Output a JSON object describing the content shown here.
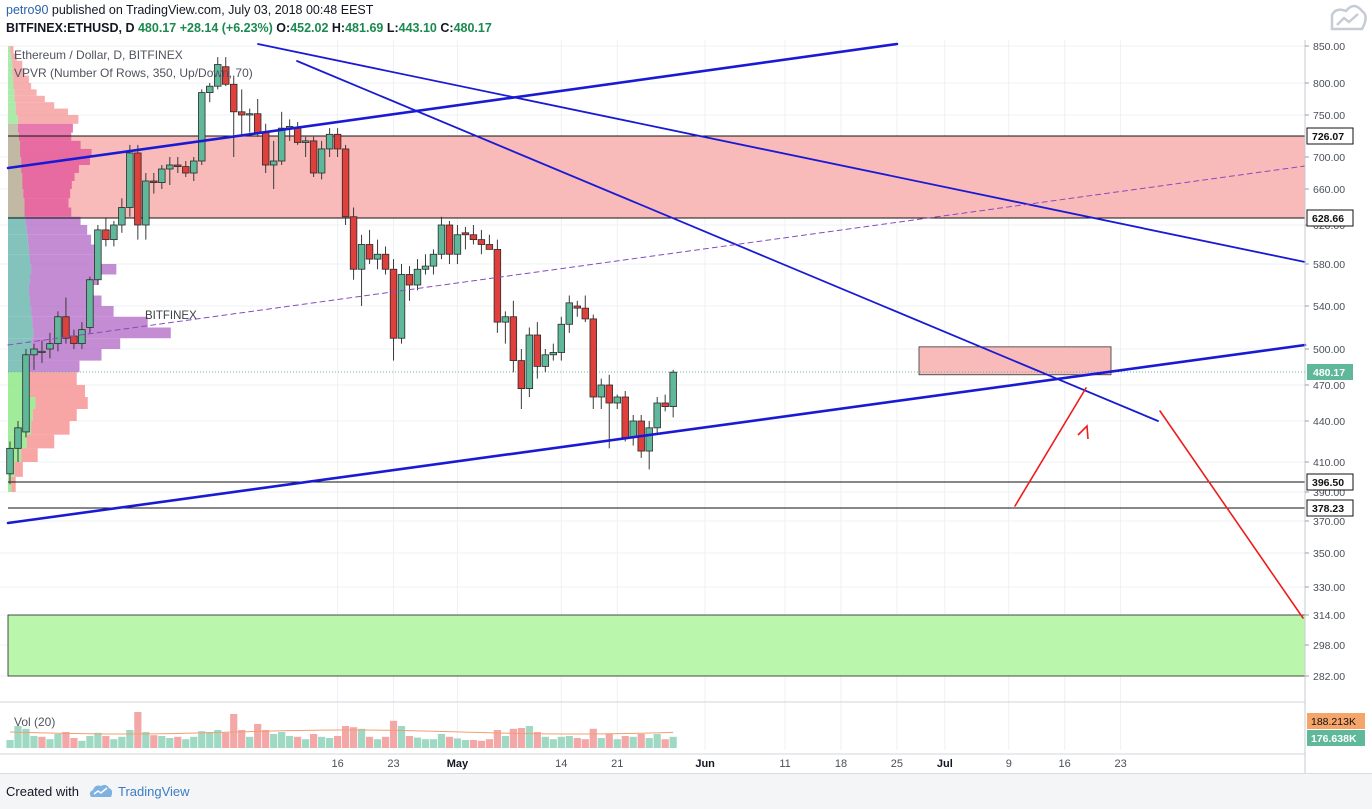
{
  "header": {
    "user": "petro90",
    "published_text": " published on TradingView.com, July 03, 2018 00:48 EEST",
    "symbol": "BITFINEX:ETHUSD, D",
    "last": "480.17",
    "change": "+28.14 (+6.23%)",
    "o_label": "O:",
    "o_value": "452.02",
    "h_label": "H:",
    "h_value": "481.69",
    "l_label": "L:",
    "l_value": "443.10",
    "c_label": "C:",
    "c_value": "480.17"
  },
  "legend": {
    "title": "Ethereum / Dollar, D, BITFINEX",
    "indicator": "VPVR (Number Of Rows, 350, Up/Down, 70)",
    "watermark": "BITFINEX",
    "volume": "Vol (20)"
  },
  "footer": {
    "created_with": "Created with",
    "brand": "TradingView"
  },
  "colors": {
    "up": "#5fb89a",
    "down": "#e0403c",
    "trendline": "#1a1ad4",
    "zone_red": "#f9b6b6",
    "zone_green": "#b6f5a8",
    "arrow": "#ee1c1c",
    "price_tag": "#5fb89a"
  },
  "chart_data": {
    "type": "candlestick",
    "y_ticks": [
      850,
      800,
      750,
      700,
      660,
      620,
      580,
      540,
      500,
      470,
      440,
      410,
      390,
      370,
      350,
      330,
      314,
      298,
      282
    ],
    "y_tick_labels": [
      "850.00",
      "800.00",
      "750.00",
      "700.00",
      "660.00",
      "620.00",
      "580.00",
      "540.00",
      "500.00",
      "470.00",
      "440.00",
      "410.00",
      "390.00",
      "370.00",
      "350.00",
      "330.00",
      "314.00",
      "298.00",
      "282.00"
    ],
    "x_labels": [
      {
        "day": 41,
        "label": "16"
      },
      {
        "day": 48,
        "label": "23"
      },
      {
        "day": 56,
        "label": "May"
      },
      {
        "day": 69,
        "label": "14"
      },
      {
        "day": 76,
        "label": "21"
      },
      {
        "day": 87,
        "label": "Jun"
      },
      {
        "day": 97,
        "label": "11"
      },
      {
        "day": 104,
        "label": "18"
      },
      {
        "day": 111,
        "label": "25"
      },
      {
        "day": 117,
        "label": "Jul"
      },
      {
        "day": 125,
        "label": "9"
      },
      {
        "day": 132,
        "label": "16"
      },
      {
        "day": 139,
        "label": "23"
      }
    ],
    "price_levels": [
      {
        "value": 726.07,
        "label": "726.07"
      },
      {
        "value": 628.66,
        "label": "628.66"
      },
      {
        "value": 396.5,
        "label": "396.50"
      },
      {
        "value": 378.23,
        "label": "378.23"
      }
    ],
    "last_price": {
      "value": 480.17,
      "label": "480.17"
    },
    "volume_labels": [
      "188.213K",
      "176.638K"
    ],
    "candles": [
      {
        "o": 402,
        "h": 425,
        "l": 395,
        "c": 420
      },
      {
        "o": 420,
        "h": 440,
        "l": 410,
        "c": 435
      },
      {
        "o": 432,
        "h": 500,
        "l": 428,
        "c": 495
      },
      {
        "o": 495,
        "h": 505,
        "l": 482,
        "c": 500
      },
      {
        "o": 497,
        "h": 508,
        "l": 488,
        "c": 498
      },
      {
        "o": 500,
        "h": 515,
        "l": 492,
        "c": 505
      },
      {
        "o": 505,
        "h": 535,
        "l": 498,
        "c": 530
      },
      {
        "o": 530,
        "h": 548,
        "l": 505,
        "c": 510
      },
      {
        "o": 512,
        "h": 518,
        "l": 500,
        "c": 505
      },
      {
        "o": 505,
        "h": 525,
        "l": 500,
        "c": 518
      },
      {
        "o": 520,
        "h": 568,
        "l": 515,
        "c": 565
      },
      {
        "o": 565,
        "h": 620,
        "l": 560,
        "c": 615
      },
      {
        "o": 615,
        "h": 628,
        "l": 598,
        "c": 605
      },
      {
        "o": 605,
        "h": 625,
        "l": 598,
        "c": 620
      },
      {
        "o": 620,
        "h": 650,
        "l": 612,
        "c": 640
      },
      {
        "o": 640,
        "h": 715,
        "l": 630,
        "c": 705
      },
      {
        "o": 705,
        "h": 715,
        "l": 605,
        "c": 620
      },
      {
        "o": 620,
        "h": 680,
        "l": 605,
        "c": 670
      },
      {
        "o": 670,
        "h": 680,
        "l": 655,
        "c": 668
      },
      {
        "o": 668,
        "h": 690,
        "l": 660,
        "c": 685
      },
      {
        "o": 685,
        "h": 700,
        "l": 665,
        "c": 690
      },
      {
        "o": 690,
        "h": 700,
        "l": 680,
        "c": 688
      },
      {
        "o": 688,
        "h": 695,
        "l": 675,
        "c": 680
      },
      {
        "o": 680,
        "h": 700,
        "l": 670,
        "c": 695
      },
      {
        "o": 695,
        "h": 790,
        "l": 690,
        "c": 785
      },
      {
        "o": 785,
        "h": 800,
        "l": 770,
        "c": 795
      },
      {
        "o": 795,
        "h": 835,
        "l": 790,
        "c": 825
      },
      {
        "o": 822,
        "h": 835,
        "l": 795,
        "c": 798
      },
      {
        "o": 798,
        "h": 810,
        "l": 700,
        "c": 755
      },
      {
        "o": 755,
        "h": 790,
        "l": 725,
        "c": 750
      },
      {
        "o": 750,
        "h": 760,
        "l": 730,
        "c": 752
      },
      {
        "o": 752,
        "h": 775,
        "l": 725,
        "c": 730
      },
      {
        "o": 730,
        "h": 740,
        "l": 680,
        "c": 690
      },
      {
        "o": 690,
        "h": 720,
        "l": 660,
        "c": 695
      },
      {
        "o": 695,
        "h": 755,
        "l": 690,
        "c": 735
      },
      {
        "o": 735,
        "h": 745,
        "l": 720,
        "c": 737
      },
      {
        "o": 735,
        "h": 742,
        "l": 715,
        "c": 718
      },
      {
        "o": 718,
        "h": 725,
        "l": 700,
        "c": 720
      },
      {
        "o": 720,
        "h": 725,
        "l": 675,
        "c": 680
      },
      {
        "o": 680,
        "h": 720,
        "l": 672,
        "c": 710
      },
      {
        "o": 710,
        "h": 735,
        "l": 700,
        "c": 728
      },
      {
        "o": 728,
        "h": 735,
        "l": 700,
        "c": 710
      },
      {
        "o": 710,
        "h": 715,
        "l": 620,
        "c": 630
      },
      {
        "o": 630,
        "h": 640,
        "l": 565,
        "c": 575
      },
      {
        "o": 575,
        "h": 610,
        "l": 540,
        "c": 600
      },
      {
        "o": 600,
        "h": 615,
        "l": 580,
        "c": 585
      },
      {
        "o": 585,
        "h": 605,
        "l": 575,
        "c": 590
      },
      {
        "o": 590,
        "h": 598,
        "l": 570,
        "c": 575
      },
      {
        "o": 575,
        "h": 585,
        "l": 490,
        "c": 510
      },
      {
        "o": 510,
        "h": 580,
        "l": 505,
        "c": 570
      },
      {
        "o": 570,
        "h": 578,
        "l": 545,
        "c": 560
      },
      {
        "o": 560,
        "h": 585,
        "l": 555,
        "c": 575
      },
      {
        "o": 575,
        "h": 590,
        "l": 570,
        "c": 578
      },
      {
        "o": 578,
        "h": 595,
        "l": 570,
        "c": 590
      },
      {
        "o": 590,
        "h": 630,
        "l": 585,
        "c": 620
      },
      {
        "o": 620,
        "h": 625,
        "l": 580,
        "c": 590
      },
      {
        "o": 590,
        "h": 620,
        "l": 580,
        "c": 610
      },
      {
        "o": 612,
        "h": 618,
        "l": 595,
        "c": 610
      },
      {
        "o": 610,
        "h": 620,
        "l": 600,
        "c": 605
      },
      {
        "o": 605,
        "h": 615,
        "l": 590,
        "c": 600
      },
      {
        "o": 600,
        "h": 610,
        "l": 595,
        "c": 595
      },
      {
        "o": 595,
        "h": 605,
        "l": 515,
        "c": 525
      },
      {
        "o": 525,
        "h": 535,
        "l": 505,
        "c": 530
      },
      {
        "o": 530,
        "h": 545,
        "l": 480,
        "c": 490
      },
      {
        "o": 490,
        "h": 500,
        "l": 450,
        "c": 467
      },
      {
        "o": 467,
        "h": 520,
        "l": 460,
        "c": 513
      },
      {
        "o": 513,
        "h": 525,
        "l": 475,
        "c": 485
      },
      {
        "o": 485,
        "h": 500,
        "l": 480,
        "c": 495
      },
      {
        "o": 495,
        "h": 505,
        "l": 490,
        "c": 497
      },
      {
        "o": 497,
        "h": 530,
        "l": 490,
        "c": 523
      },
      {
        "o": 523,
        "h": 550,
        "l": 515,
        "c": 543
      },
      {
        "o": 540,
        "h": 545,
        "l": 530,
        "c": 538
      },
      {
        "o": 538,
        "h": 550,
        "l": 525,
        "c": 528
      },
      {
        "o": 528,
        "h": 532,
        "l": 450,
        "c": 460
      },
      {
        "o": 460,
        "h": 475,
        "l": 450,
        "c": 470
      },
      {
        "o": 470,
        "h": 478,
        "l": 420,
        "c": 455
      },
      {
        "o": 455,
        "h": 462,
        "l": 450,
        "c": 460
      },
      {
        "o": 460,
        "h": 465,
        "l": 425,
        "c": 428
      },
      {
        "o": 428,
        "h": 445,
        "l": 422,
        "c": 440
      },
      {
        "o": 440,
        "h": 445,
        "l": 413,
        "c": 418
      },
      {
        "o": 418,
        "h": 440,
        "l": 405,
        "c": 435
      },
      {
        "o": 435,
        "h": 460,
        "l": 430,
        "c": 455
      },
      {
        "o": 455,
        "h": 462,
        "l": 448,
        "c": 452
      },
      {
        "o": 452,
        "h": 482,
        "l": 443,
        "c": 480
      }
    ],
    "volumes": [
      {
        "v": 20,
        "up": true
      },
      {
        "v": 55,
        "up": true
      },
      {
        "v": 48,
        "up": true
      },
      {
        "v": 30,
        "up": true
      },
      {
        "v": 28,
        "up": false
      },
      {
        "v": 22,
        "up": true
      },
      {
        "v": 35,
        "up": true
      },
      {
        "v": 40,
        "up": false
      },
      {
        "v": 25,
        "up": false
      },
      {
        "v": 18,
        "up": true
      },
      {
        "v": 30,
        "up": true
      },
      {
        "v": 38,
        "up": true
      },
      {
        "v": 30,
        "up": false
      },
      {
        "v": 22,
        "up": true
      },
      {
        "v": 28,
        "up": true
      },
      {
        "v": 45,
        "up": true
      },
      {
        "v": 90,
        "up": false
      },
      {
        "v": 40,
        "up": true
      },
      {
        "v": 32,
        "up": false
      },
      {
        "v": 30,
        "up": true
      },
      {
        "v": 25,
        "up": true
      },
      {
        "v": 28,
        "up": false
      },
      {
        "v": 22,
        "up": true
      },
      {
        "v": 28,
        "up": true
      },
      {
        "v": 42,
        "up": true
      },
      {
        "v": 40,
        "up": true
      },
      {
        "v": 45,
        "up": true
      },
      {
        "v": 38,
        "up": false
      },
      {
        "v": 85,
        "up": false
      },
      {
        "v": 45,
        "up": false
      },
      {
        "v": 28,
        "up": true
      },
      {
        "v": 60,
        "up": false
      },
      {
        "v": 45,
        "up": false
      },
      {
        "v": 35,
        "up": true
      },
      {
        "v": 40,
        "up": true
      },
      {
        "v": 30,
        "up": true
      },
      {
        "v": 28,
        "up": false
      },
      {
        "v": 22,
        "up": true
      },
      {
        "v": 35,
        "up": false
      },
      {
        "v": 28,
        "up": true
      },
      {
        "v": 25,
        "up": true
      },
      {
        "v": 30,
        "up": false
      },
      {
        "v": 55,
        "up": false
      },
      {
        "v": 52,
        "up": false
      },
      {
        "v": 48,
        "up": true
      },
      {
        "v": 28,
        "up": false
      },
      {
        "v": 22,
        "up": true
      },
      {
        "v": 28,
        "up": false
      },
      {
        "v": 68,
        "up": false
      },
      {
        "v": 55,
        "up": true
      },
      {
        "v": 30,
        "up": false
      },
      {
        "v": 26,
        "up": true
      },
      {
        "v": 22,
        "up": true
      },
      {
        "v": 22,
        "up": true
      },
      {
        "v": 35,
        "up": true
      },
      {
        "v": 28,
        "up": false
      },
      {
        "v": 24,
        "up": true
      },
      {
        "v": 20,
        "up": true
      },
      {
        "v": 20,
        "up": false
      },
      {
        "v": 18,
        "up": false
      },
      {
        "v": 22,
        "up": false
      },
      {
        "v": 45,
        "up": false
      },
      {
        "v": 30,
        "up": true
      },
      {
        "v": 48,
        "up": false
      },
      {
        "v": 50,
        "up": false
      },
      {
        "v": 55,
        "up": true
      },
      {
        "v": 40,
        "up": false
      },
      {
        "v": 28,
        "up": true
      },
      {
        "v": 22,
        "up": true
      },
      {
        "v": 28,
        "up": true
      },
      {
        "v": 30,
        "up": true
      },
      {
        "v": 25,
        "up": false
      },
      {
        "v": 22,
        "up": false
      },
      {
        "v": 48,
        "up": false
      },
      {
        "v": 25,
        "up": true
      },
      {
        "v": 36,
        "up": false
      },
      {
        "v": 22,
        "up": true
      },
      {
        "v": 30,
        "up": false
      },
      {
        "v": 28,
        "up": true
      },
      {
        "v": 35,
        "up": false
      },
      {
        "v": 25,
        "up": true
      },
      {
        "v": 35,
        "up": true
      },
      {
        "v": 22,
        "up": false
      },
      {
        "v": 28,
        "up": true
      }
    ],
    "vpvr": [
      {
        "p": 845,
        "up": 4,
        "dn": 6
      },
      {
        "p": 835,
        "up": 6,
        "dn": 10
      },
      {
        "p": 825,
        "up": 8,
        "dn": 18
      },
      {
        "p": 815,
        "up": 8,
        "dn": 22
      },
      {
        "p": 805,
        "up": 10,
        "dn": 28
      },
      {
        "p": 795,
        "up": 10,
        "dn": 32
      },
      {
        "p": 785,
        "up": 12,
        "dn": 40
      },
      {
        "p": 775,
        "up": 12,
        "dn": 55
      },
      {
        "p": 765,
        "up": 14,
        "dn": 70
      },
      {
        "p": 755,
        "up": 14,
        "dn": 95
      },
      {
        "p": 745,
        "up": 18,
        "dn": 110
      },
      {
        "p": 735,
        "up": 18,
        "dn": 100
      },
      {
        "p": 725,
        "up": 20,
        "dn": 95
      },
      {
        "p": 715,
        "up": 22,
        "dn": 110
      },
      {
        "p": 705,
        "up": 22,
        "dn": 130
      },
      {
        "p": 695,
        "up": 24,
        "dn": 125
      },
      {
        "p": 685,
        "up": 24,
        "dn": 105
      },
      {
        "p": 675,
        "up": 26,
        "dn": 95
      },
      {
        "p": 665,
        "up": 26,
        "dn": 90
      },
      {
        "p": 655,
        "up": 28,
        "dn": 85
      },
      {
        "p": 645,
        "up": 30,
        "dn": 80
      },
      {
        "p": 635,
        "up": 30,
        "dn": 85
      },
      {
        "p": 625,
        "up": 32,
        "dn": 100
      },
      {
        "p": 615,
        "up": 34,
        "dn": 110
      },
      {
        "p": 605,
        "up": 36,
        "dn": 115
      },
      {
        "p": 595,
        "up": 38,
        "dn": 120
      },
      {
        "p": 585,
        "up": 40,
        "dn": 130
      },
      {
        "p": 575,
        "up": 42,
        "dn": 155
      },
      {
        "p": 565,
        "up": 40,
        "dn": 125
      },
      {
        "p": 555,
        "up": 38,
        "dn": 110
      },
      {
        "p": 545,
        "up": 40,
        "dn": 130
      },
      {
        "p": 535,
        "up": 42,
        "dn": 150
      },
      {
        "p": 525,
        "up": 44,
        "dn": 210
      },
      {
        "p": 515,
        "up": 46,
        "dn": 250
      },
      {
        "p": 505,
        "up": 44,
        "dn": 160
      },
      {
        "p": 495,
        "up": 40,
        "dn": 130
      },
      {
        "p": 485,
        "up": 30,
        "dn": 100
      },
      {
        "p": 475,
        "up": 35,
        "dn": 90
      },
      {
        "p": 465,
        "up": 40,
        "dn": 100
      },
      {
        "p": 455,
        "up": 50,
        "dn": 95
      },
      {
        "p": 445,
        "up": 45,
        "dn": 80
      },
      {
        "p": 435,
        "up": 42,
        "dn": 70
      },
      {
        "p": 425,
        "up": 34,
        "dn": 50
      },
      {
        "p": 415,
        "up": 24,
        "dn": 30
      },
      {
        "p": 405,
        "up": 12,
        "dn": 15
      },
      {
        "p": 395,
        "up": 6,
        "dn": 8
      }
    ]
  }
}
